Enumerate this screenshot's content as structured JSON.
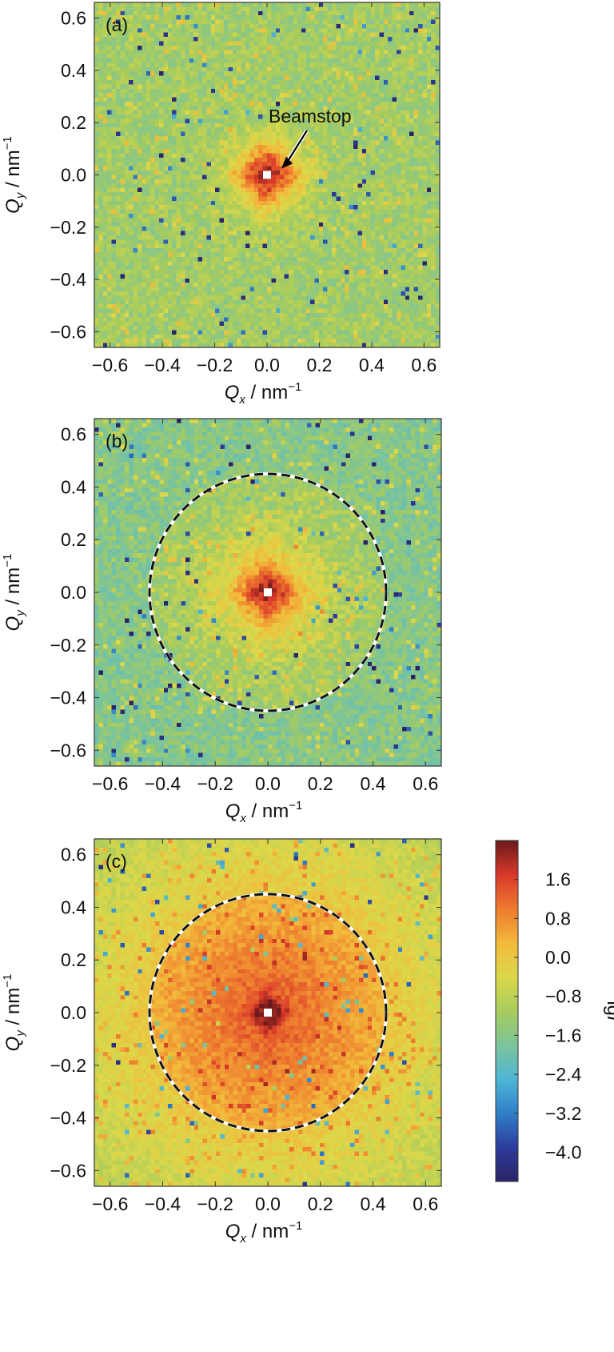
{
  "chart_data": [
    {
      "type": "heatmap",
      "panel_label": "(a)",
      "xlabel": {
        "symbol": "Q",
        "sub": "x",
        "unit": " / nm",
        "sup": "−1"
      },
      "ylabel": {
        "symbol": "Q",
        "sub": "y",
        "unit": " / nm",
        "sup": "−1"
      },
      "xlim": [
        -0.66,
        0.66
      ],
      "ylim": [
        -0.66,
        0.66
      ],
      "xticks": [
        -0.6,
        -0.4,
        -0.2,
        0.0,
        0.2,
        0.4,
        0.6
      ],
      "xtick_labels": [
        "−0.6",
        "−0.4",
        "−0.2",
        "0.0",
        "0.2",
        "0.4",
        "0.6"
      ],
      "yticks": [
        -0.6,
        -0.4,
        -0.2,
        0.0,
        0.2,
        0.4,
        0.6
      ],
      "ytick_labels": [
        "−0.6",
        "−0.4",
        "−0.2",
        "0.0",
        "0.2",
        "0.4",
        "0.6"
      ],
      "annotation": {
        "text": "Beamstop",
        "target": [
          0.0,
          0.0
        ]
      },
      "circle_radius": null,
      "center_lgI": 1.9,
      "halo_width": 0.03,
      "background_lgI": -1.2,
      "noise": 0.9
    },
    {
      "type": "heatmap",
      "panel_label": "(b)",
      "xlabel": {
        "symbol": "Q",
        "sub": "x",
        "unit": " / nm",
        "sup": "−1"
      },
      "ylabel": {
        "symbol": "Q",
        "sub": "y",
        "unit": " / nm",
        "sup": "−1"
      },
      "xlim": [
        -0.66,
        0.66
      ],
      "ylim": [
        -0.66,
        0.66
      ],
      "xticks": [
        -0.6,
        -0.4,
        -0.2,
        0.0,
        0.2,
        0.4,
        0.6
      ],
      "xtick_labels": [
        "−0.6",
        "−0.4",
        "−0.2",
        "0.0",
        "0.2",
        "0.4",
        "0.6"
      ],
      "yticks": [
        -0.6,
        -0.4,
        -0.2,
        0.0,
        0.2,
        0.4,
        0.6
      ],
      "ytick_labels": [
        "−0.6",
        "−0.4",
        "−0.2",
        "0.0",
        "0.2",
        "0.4",
        "0.6"
      ],
      "annotation": null,
      "circle_radius": 0.45,
      "center_lgI": 1.9,
      "halo_width": 0.06,
      "background_lgI": -1.6,
      "noise": 0.9
    },
    {
      "type": "heatmap",
      "panel_label": "(c)",
      "xlabel": {
        "symbol": "Q",
        "sub": "x",
        "unit": " / nm",
        "sup": "−1"
      },
      "ylabel": {
        "symbol": "Q",
        "sub": "y",
        "unit": " / nm",
        "sup": "−1"
      },
      "xlim": [
        -0.66,
        0.66
      ],
      "ylim": [
        -0.66,
        0.66
      ],
      "xticks": [
        -0.6,
        -0.4,
        -0.2,
        0.0,
        0.2,
        0.4,
        0.6
      ],
      "xtick_labels": [
        "−0.6",
        "−0.4",
        "−0.2",
        "0.0",
        "0.2",
        "0.4",
        "0.6"
      ],
      "yticks": [
        -0.6,
        -0.4,
        -0.2,
        0.0,
        0.2,
        0.4,
        0.6
      ],
      "ytick_labels": [
        "−0.6",
        "−0.4",
        "−0.2",
        "0.0",
        "0.2",
        "0.4",
        "0.6"
      ],
      "annotation": null,
      "circle_radius": 0.45,
      "center_lgI": 2.0,
      "halo_width": 0.3,
      "background_lgI": -1.3,
      "noise": 0.6
    }
  ],
  "colorbar": {
    "label": {
      "text": "lg",
      "italic": "I"
    },
    "range": [
      -4.6,
      2.4
    ],
    "ticks": [
      1.6,
      0.8,
      0.0,
      -0.8,
      -1.6,
      -2.4,
      -3.2,
      -4.0
    ],
    "tick_labels": [
      "1.6",
      "0.8",
      "0.0",
      "−0.8",
      "−1.6",
      "−2.4",
      "−3.2",
      "−4.0"
    ],
    "colors": [
      "#2b2467",
      "#2d3c9c",
      "#2f7fc7",
      "#4fb6d6",
      "#7cc49a",
      "#a8cc5c",
      "#dcd84a",
      "#f2b93a",
      "#ee7a2e",
      "#d8382a",
      "#6a1a1a"
    ]
  }
}
